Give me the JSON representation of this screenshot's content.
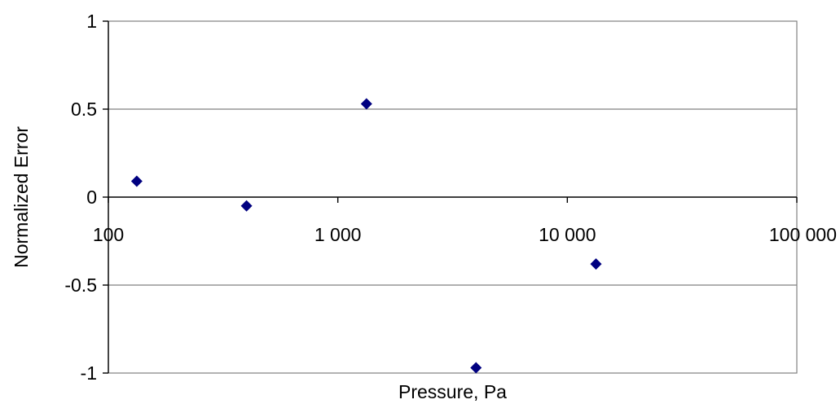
{
  "chart_data": {
    "type": "scatter",
    "xlabel": "Pressure, Pa",
    "ylabel": "Normalized Error",
    "x_scale": "log",
    "xlim": [
      100,
      100000
    ],
    "ylim": [
      -1,
      1
    ],
    "x_ticks": [
      100,
      1000,
      10000,
      100000
    ],
    "x_tick_labels": [
      "100",
      "1 000",
      "10 000",
      "100 000"
    ],
    "y_ticks": [
      1,
      0.5,
      0,
      -0.5,
      -1
    ],
    "y_tick_labels": [
      "1",
      "0.5",
      "0",
      "-0.5",
      "-1"
    ],
    "grid": true,
    "legend": "none",
    "marker": "diamond",
    "marker_color": "#000080",
    "points": [
      {
        "x": 133,
        "y": 0.09
      },
      {
        "x": 400,
        "y": -0.05
      },
      {
        "x": 1333,
        "y": 0.53
      },
      {
        "x": 4000,
        "y": -0.97
      },
      {
        "x": 13332,
        "y": -0.38
      }
    ]
  }
}
